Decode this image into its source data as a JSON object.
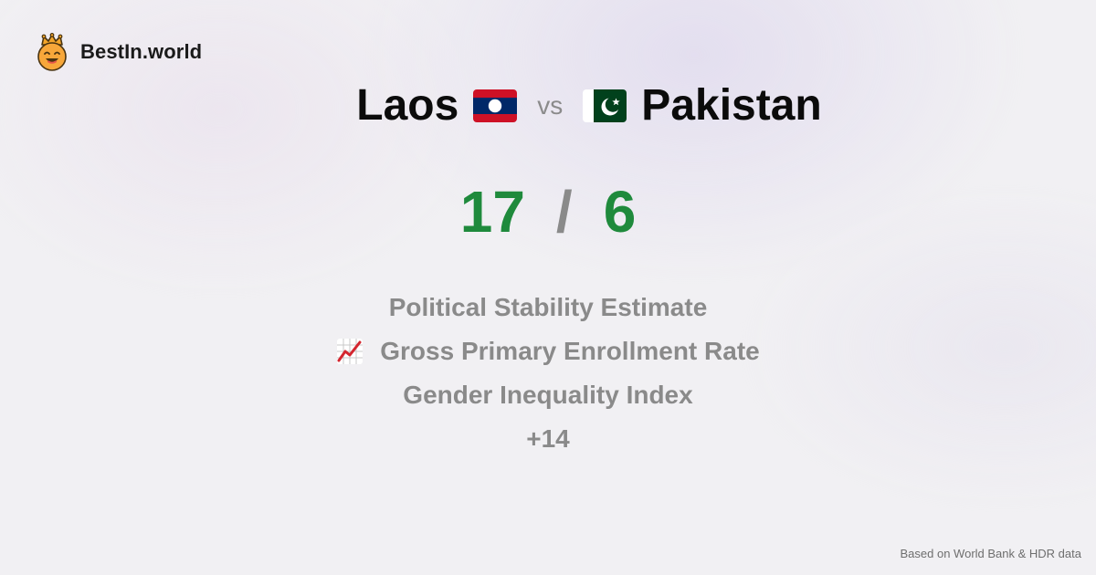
{
  "brand": {
    "name": "BestIn.world",
    "icon": "crown-smiley-icon"
  },
  "comparison": {
    "left_country": "Laos",
    "left_flag": "laos-flag-icon",
    "vs_label": "vs",
    "right_country": "Pakistan",
    "right_flag": "pakistan-flag-icon"
  },
  "score": {
    "left": "17",
    "separator": "/",
    "right": "6",
    "color": "#1f8a3c"
  },
  "metrics": [
    {
      "label": "Political Stability Estimate"
    },
    {
      "label": "Gross Primary Enrollment Rate",
      "icon": "chart-increasing-icon"
    },
    {
      "label": "Gender Inequality Index"
    }
  ],
  "more_count": "+14",
  "footer": {
    "source": "Based on World Bank & HDR data"
  }
}
